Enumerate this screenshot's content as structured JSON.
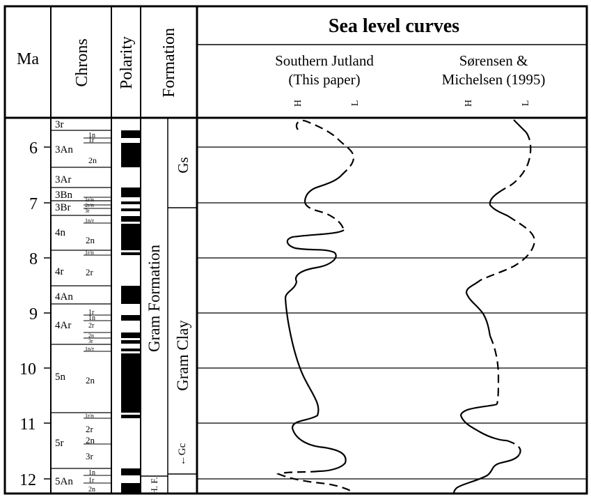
{
  "header": {
    "ma": "Ma",
    "chrons": "Chrons",
    "polarity": "Polarity",
    "formation": "Formation",
    "title": "Sea level curves"
  },
  "curves": [
    {
      "line1": "Southern Jutland",
      "line2": "(This paper)",
      "h": "H",
      "l": "L"
    },
    {
      "line1": "Sørensen &",
      "line2": "Michelsen (1995)",
      "h": "H",
      "l": "L"
    }
  ],
  "ages": [
    "6",
    "7",
    "8",
    "9",
    "10",
    "11",
    "12"
  ],
  "formations": {
    "gram_formation": "Gram Formation",
    "gs": "Gs",
    "gram_clay": "Gram Clay",
    "gc": "←Gc",
    "hf": "H. F."
  },
  "chrons": {
    "major": [
      {
        "label": "3r",
        "size": "chron"
      },
      {
        "label": "3An",
        "size": "chron"
      },
      {
        "label": "3Ar",
        "size": "chron"
      },
      {
        "label": "3Bn",
        "size": "chron"
      },
      {
        "label": "3Br",
        "size": "chron"
      },
      {
        "label": "4n",
        "size": "chron"
      },
      {
        "label": "4r",
        "size": "chron"
      },
      {
        "label": "4An",
        "size": "chron"
      },
      {
        "label": "4Ar",
        "size": "chron"
      },
      {
        "label": "5n",
        "size": "chron"
      },
      {
        "label": "5r",
        "size": "chron"
      },
      {
        "label": "5An",
        "size": "chron"
      }
    ],
    "minor": [
      "1n",
      "1r",
      "2n",
      "1r/n",
      "2r/n",
      "3r",
      "1n/r",
      "2n",
      "1r/n",
      "2r",
      "1r",
      "1n",
      "2r",
      "2n",
      "3r",
      "1n/r",
      "2n",
      "1r/n",
      "2r",
      "2n",
      "3r",
      "1n",
      "1r",
      "2n"
    ]
  }
}
